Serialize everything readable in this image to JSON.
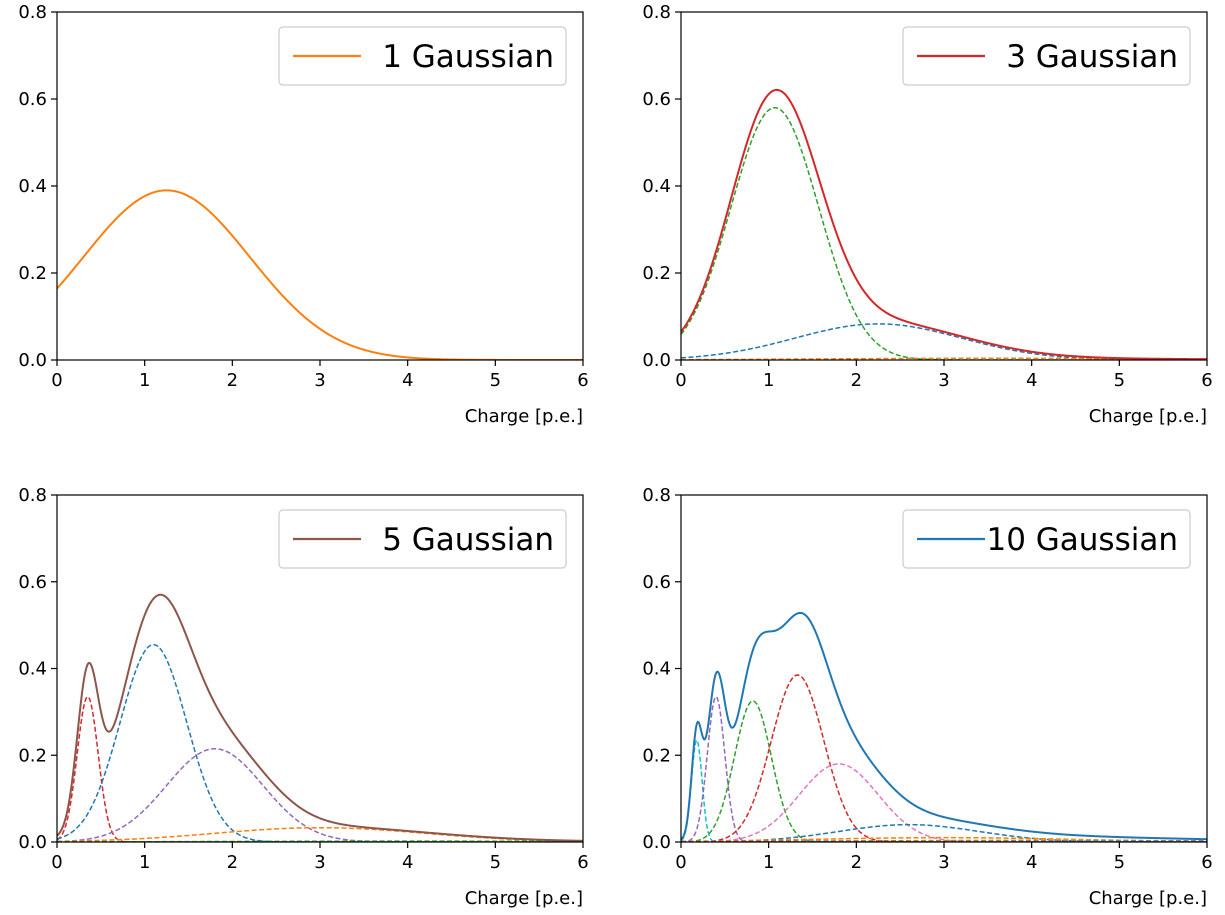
{
  "chart_data": [
    {
      "type": "line",
      "xlabel": "Charge [p.e.]",
      "xlim": [
        0,
        6
      ],
      "ylim": [
        0,
        0.8
      ],
      "xticks": [
        0,
        1,
        2,
        3,
        4,
        5,
        6
      ],
      "yticks": [
        0.0,
        0.2,
        0.4,
        0.6,
        0.8
      ],
      "legend": {
        "label": "1 Gaussian",
        "color": "#ff7f0e",
        "placement": "top-right"
      },
      "total_color": "#ff7f0e",
      "components": [
        {
          "amp": 0.39,
          "mu": 1.25,
          "sigma": 0.95,
          "color": "#ff7f0e"
        }
      ],
      "show_components": false
    },
    {
      "type": "line",
      "xlabel": "Charge [p.e.]",
      "xlim": [
        0,
        6
      ],
      "ylim": [
        0,
        0.8
      ],
      "xticks": [
        0,
        1,
        2,
        3,
        4,
        5,
        6
      ],
      "yticks": [
        0.0,
        0.2,
        0.4,
        0.6,
        0.8
      ],
      "legend": {
        "label": "3 Gaussian",
        "color": "#d62728",
        "placement": "top-right"
      },
      "total_color": "#d62728",
      "components": [
        {
          "amp": 0.58,
          "mu": 1.07,
          "sigma": 0.5,
          "color": "#2ca02c"
        },
        {
          "amp": 0.083,
          "mu": 2.25,
          "sigma": 0.95,
          "color": "#1f77b4"
        },
        {
          "amp": 0.004,
          "mu": 3.5,
          "sigma": 2.0,
          "color": "#ff7f0e"
        }
      ],
      "show_components": true
    },
    {
      "type": "line",
      "xlabel": "Charge [p.e.]",
      "xlim": [
        0,
        6
      ],
      "ylim": [
        0,
        0.8
      ],
      "xticks": [
        0,
        1,
        2,
        3,
        4,
        5,
        6
      ],
      "yticks": [
        0.0,
        0.2,
        0.4,
        0.6,
        0.8
      ],
      "legend": {
        "label": "5 Gaussian",
        "color": "#8c564b",
        "placement": "top-right"
      },
      "total_color": "#8c564b",
      "components": [
        {
          "amp": 0.335,
          "mu": 0.35,
          "sigma": 0.12,
          "color": "#d62728"
        },
        {
          "amp": 0.455,
          "mu": 1.1,
          "sigma": 0.38,
          "color": "#1f77b4"
        },
        {
          "amp": 0.215,
          "mu": 1.8,
          "sigma": 0.55,
          "color": "#9467bd"
        },
        {
          "amp": 0.033,
          "mu": 3.0,
          "sigma": 1.2,
          "color": "#ff7f0e"
        },
        {
          "amp": 0.002,
          "mu": 4.0,
          "sigma": 2.0,
          "color": "#2ca02c"
        }
      ],
      "show_components": true
    },
    {
      "type": "line",
      "xlabel": "Charge [p.e.]",
      "xlim": [
        0,
        6
      ],
      "ylim": [
        0,
        0.8
      ],
      "xticks": [
        0,
        1,
        2,
        3,
        4,
        5,
        6
      ],
      "yticks": [
        0.0,
        0.2,
        0.4,
        0.6,
        0.8
      ],
      "legend": {
        "label": "10 Gaussian",
        "color": "#1f77b4",
        "placement": "top-right"
      },
      "total_color": "#1f77b4",
      "components": [
        {
          "amp": 0.235,
          "mu": 0.18,
          "sigma": 0.06,
          "color": "#17becf"
        },
        {
          "amp": 0.335,
          "mu": 0.4,
          "sigma": 0.1,
          "color": "#9467bd"
        },
        {
          "amp": 0.325,
          "mu": 0.82,
          "sigma": 0.21,
          "color": "#2ca02c"
        },
        {
          "amp": 0.385,
          "mu": 1.33,
          "sigma": 0.3,
          "color": "#d62728"
        },
        {
          "amp": 0.18,
          "mu": 1.8,
          "sigma": 0.45,
          "color": "#e377c2"
        },
        {
          "amp": 0.04,
          "mu": 2.6,
          "sigma": 0.8,
          "color": "#1f77b4"
        },
        {
          "amp": 0.01,
          "mu": 3.0,
          "sigma": 1.5,
          "color": "#ff7f0e"
        },
        {
          "amp": 0.004,
          "mu": 4.0,
          "sigma": 2.0,
          "color": "#bcbd22"
        },
        {
          "amp": 0.003,
          "mu": 5.0,
          "sigma": 2.0,
          "color": "#7f7f7f"
        },
        {
          "amp": 0.002,
          "mu": 2.0,
          "sigma": 1.5,
          "color": "#8c564b"
        }
      ],
      "show_components": true
    }
  ]
}
